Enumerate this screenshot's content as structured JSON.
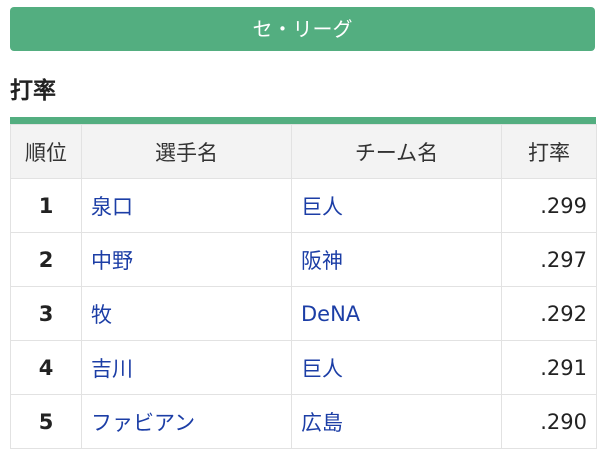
{
  "league": {
    "label": "セ・リーグ"
  },
  "section": {
    "title": "打率"
  },
  "table": {
    "headers": {
      "rank": "順位",
      "player": "選手名",
      "team": "チーム名",
      "avg": "打率"
    },
    "rows": [
      {
        "rank": "1",
        "player": "泉口",
        "team": "巨人",
        "avg": ".299"
      },
      {
        "rank": "2",
        "player": "中野",
        "team": "阪神",
        "avg": ".297"
      },
      {
        "rank": "3",
        "player": "牧",
        "team": "DeNA",
        "avg": ".292"
      },
      {
        "rank": "4",
        "player": "吉川",
        "team": "巨人",
        "avg": ".291"
      },
      {
        "rank": "5",
        "player": "ファビアン",
        "team": "広島",
        "avg": ".290"
      }
    ]
  },
  "colors": {
    "accent": "#53ae80",
    "link": "#1c3ea6"
  }
}
